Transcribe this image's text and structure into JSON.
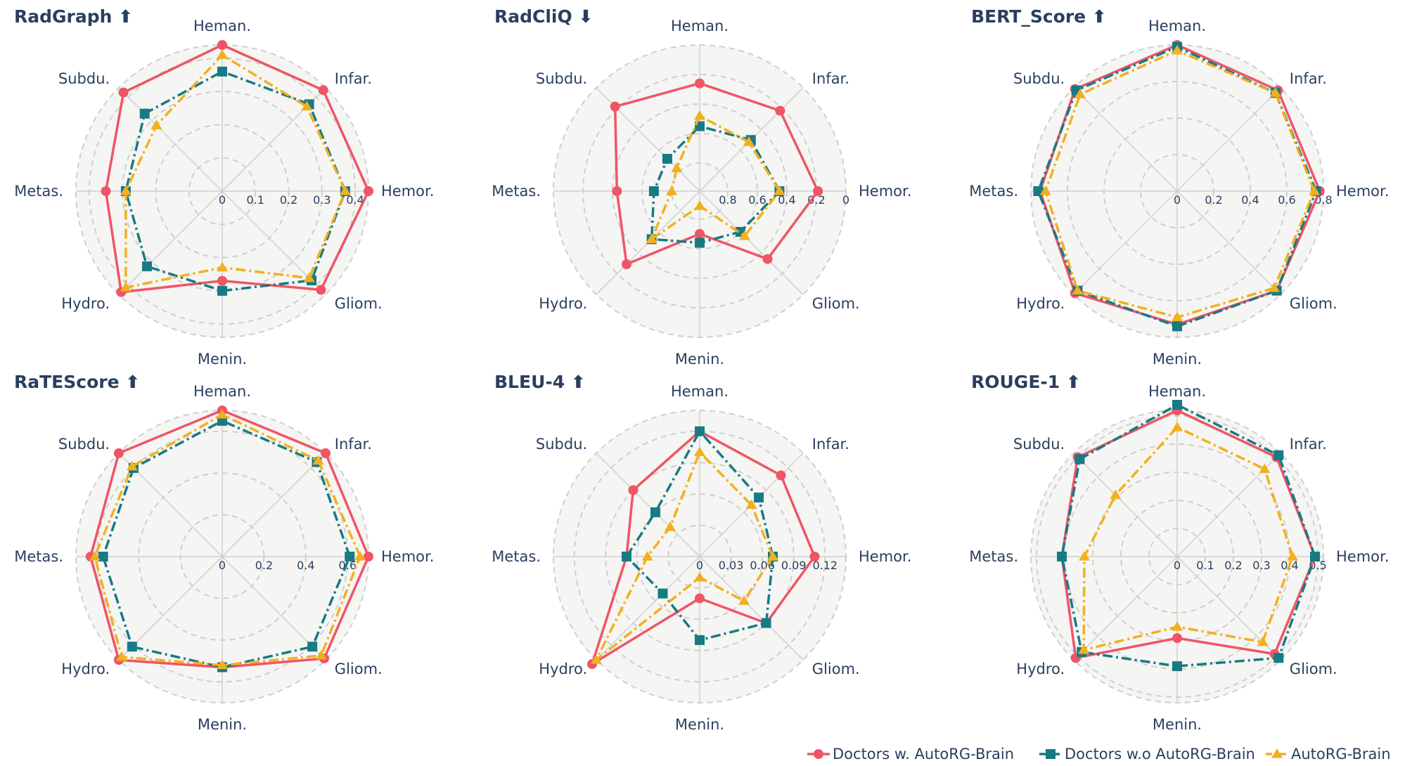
{
  "colors": {
    "background": "#f5f5f3",
    "spoke": "#d0d0d0",
    "gridline": "#cfcfcf",
    "text": "#2a3f5f",
    "series": [
      "#ef5566",
      "#177a84",
      "#f2b01e"
    ]
  },
  "legend": {
    "items": [
      {
        "label": "Doctors w. AutoRG-Brain",
        "marker": "circle",
        "color": "#ef5566",
        "dash": "solid"
      },
      {
        "label": "Doctors w.o AutoRG-Brain",
        "marker": "square",
        "color": "#177a84",
        "dash": "dashdot"
      },
      {
        "label": "AutoRG-Brain",
        "marker": "triangle",
        "color": "#f2b01e",
        "dash": "dashdot"
      }
    ]
  },
  "chart_data": [
    {
      "type": "radar",
      "title": "RadGraph ⬆",
      "categories": [
        "Hemor.",
        "Infar.",
        "Heman.",
        "Subdu.",
        "Metas.",
        "Hydro.",
        "Menin.",
        "Gliom."
      ],
      "range": [
        0,
        0.44
      ],
      "reversed": false,
      "tick_values": [
        0,
        0.1,
        0.2,
        0.3,
        0.4
      ],
      "tick_labels": [
        "0",
        "0.1",
        "0.2",
        "0.3",
        "0.4"
      ],
      "series": [
        {
          "name": "Doctors w. AutoRG-Brain",
          "values": [
            0.44,
            0.43,
            0.44,
            0.42,
            0.35,
            0.43,
            0.27,
            0.42
          ]
        },
        {
          "name": "Doctors w.o AutoRG-Brain",
          "values": [
            0.37,
            0.37,
            0.36,
            0.33,
            0.29,
            0.32,
            0.3,
            0.38
          ]
        },
        {
          "name": "AutoRG-Brain",
          "values": [
            0.37,
            0.36,
            0.41,
            0.28,
            0.29,
            0.41,
            0.23,
            0.37
          ]
        }
      ]
    },
    {
      "type": "radar",
      "title": "RadCliQ ⬇",
      "categories": [
        "Hemor.",
        "Infar.",
        "Heman.",
        "Subdu.",
        "Metas.",
        "Hydro.",
        "Menin.",
        "Gliom."
      ],
      "range": [
        0,
        0.99
      ],
      "reversed": true,
      "tick_values": [
        0,
        0.2,
        0.4,
        0.6,
        0.8
      ],
      "tick_labels": [
        "0",
        "0.2",
        "0.4",
        "0.6",
        "0.8"
      ],
      "series": [
        {
          "name": "Doctors w. AutoRG-Brain",
          "values": [
            0.19,
            0.22,
            0.26,
            0.18,
            0.43,
            0.29,
            0.7,
            0.34
          ]
        },
        {
          "name": "Doctors w.o AutoRG-Brain",
          "values": [
            0.45,
            0.5,
            0.55,
            0.68,
            0.68,
            0.53,
            0.64,
            0.6
          ]
        },
        {
          "name": "AutoRG-Brain",
          "values": [
            0.45,
            0.52,
            0.48,
            0.77,
            0.8,
            0.53,
            0.89,
            0.56
          ]
        }
      ]
    },
    {
      "type": "radar",
      "title": "BERT_Score ⬆",
      "categories": [
        "Hemor.",
        "Infar.",
        "Heman.",
        "Subdu.",
        "Metas.",
        "Hydro.",
        "Menin.",
        "Gliom."
      ],
      "range": [
        0,
        0.8
      ],
      "reversed": false,
      "tick_values": [
        0,
        0.2,
        0.4,
        0.6,
        0.8
      ],
      "tick_labels": [
        "0",
        "0.2",
        "0.4",
        "0.6",
        "0.8"
      ],
      "series": [
        {
          "name": "Doctors w. AutoRG-Brain",
          "values": [
            0.78,
            0.78,
            0.8,
            0.79,
            0.75,
            0.79,
            0.73,
            0.77
          ]
        },
        {
          "name": "Doctors w.o AutoRG-Brain",
          "values": [
            0.76,
            0.76,
            0.79,
            0.78,
            0.76,
            0.77,
            0.74,
            0.77
          ]
        },
        {
          "name": "AutoRG-Brain",
          "values": [
            0.75,
            0.76,
            0.77,
            0.75,
            0.72,
            0.77,
            0.69,
            0.75
          ]
        }
      ]
    },
    {
      "type": "radar",
      "title": "RaTEScore ⬆",
      "categories": [
        "Hemor.",
        "Infar.",
        "Heman.",
        "Subdu.",
        "Metas.",
        "Hydro.",
        "Menin.",
        "Gliom."
      ],
      "range": [
        0,
        0.7
      ],
      "reversed": false,
      "tick_values": [
        0,
        0.2,
        0.4,
        0.6
      ],
      "tick_labels": [
        "0",
        "0.2",
        "0.4",
        "0.6"
      ],
      "series": [
        {
          "name": "Doctors w. AutoRG-Brain",
          "values": [
            0.7,
            0.7,
            0.7,
            0.7,
            0.63,
            0.7,
            0.53,
            0.69
          ]
        },
        {
          "name": "Doctors w.o AutoRG-Brain",
          "values": [
            0.61,
            0.64,
            0.65,
            0.6,
            0.57,
            0.61,
            0.53,
            0.61
          ]
        },
        {
          "name": "AutoRG-Brain",
          "values": [
            0.66,
            0.65,
            0.68,
            0.61,
            0.61,
            0.68,
            0.52,
            0.67
          ]
        }
      ]
    },
    {
      "type": "radar",
      "title": "BLEU-4 ⬆",
      "categories": [
        "Hemor.",
        "Infar.",
        "Heman.",
        "Subdu.",
        "Metas.",
        "Hydro.",
        "Menin.",
        "Gliom."
      ],
      "range": [
        0,
        0.14
      ],
      "reversed": false,
      "tick_values": [
        0,
        0.03,
        0.06,
        0.09,
        0.12
      ],
      "tick_labels": [
        "0",
        "0.03",
        "0.06",
        "0.09",
        "0.12"
      ],
      "series": [
        {
          "name": "Doctors w. AutoRG-Brain",
          "values": [
            0.11,
            0.11,
            0.12,
            0.09,
            0.07,
            0.16,
            0.04,
            0.09
          ]
        },
        {
          "name": "Doctors w.o AutoRG-Brain",
          "values": [
            0.07,
            0.08,
            0.12,
            0.06,
            0.07,
            0.05,
            0.08,
            0.09
          ]
        },
        {
          "name": "AutoRG-Brain",
          "values": [
            0.07,
            0.07,
            0.1,
            0.04,
            0.05,
            0.14,
            0.02,
            0.06
          ]
        }
      ]
    },
    {
      "type": "radar",
      "title": "ROUGE-1 ⬆",
      "categories": [
        "Hemor.",
        "Infar.",
        "Heman.",
        "Subdu.",
        "Metas.",
        "Hydro.",
        "Menin.",
        "Gliom."
      ],
      "range": [
        0,
        0.52
      ],
      "reversed": false,
      "tick_values": [
        0,
        0.1,
        0.2,
        0.3,
        0.4,
        0.5
      ],
      "tick_labels": [
        "0",
        "0.1",
        "0.2",
        "0.3",
        "0.4",
        "0.5"
      ],
      "series": [
        {
          "name": "Doctors w. AutoRG-Brain",
          "values": [
            0.49,
            0.5,
            0.52,
            0.5,
            0.41,
            0.51,
            0.29,
            0.49
          ]
        },
        {
          "name": "Doctors w.o AutoRG-Brain",
          "values": [
            0.49,
            0.51,
            0.54,
            0.49,
            0.41,
            0.48,
            0.39,
            0.51
          ]
        },
        {
          "name": "AutoRG-Brain",
          "values": [
            0.41,
            0.44,
            0.46,
            0.31,
            0.33,
            0.47,
            0.25,
            0.43
          ]
        }
      ]
    }
  ]
}
